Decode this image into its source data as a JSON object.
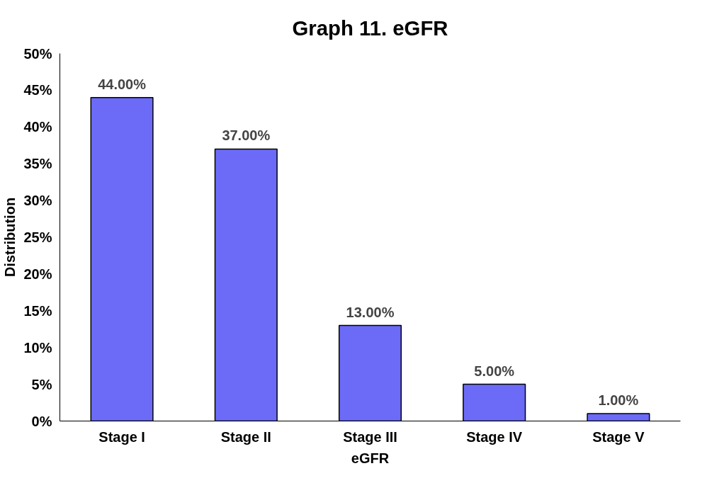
{
  "chart_data": {
    "type": "bar",
    "title": "Graph 11. eGFR",
    "xlabel": "eGFR",
    "ylabel": "Distribution",
    "categories": [
      "Stage I",
      "Stage II",
      "Stage III",
      "Stage IV",
      "Stage V"
    ],
    "values": [
      44,
      37,
      13,
      5,
      1
    ],
    "color": "#6b6bf7",
    "value_labels": [
      "44.00%",
      "37.00%",
      "13.00%",
      "5.00%",
      "1.00%"
    ],
    "ylim": [
      0,
      50
    ],
    "yticks": [
      {
        "value": 0,
        "label": "0%"
      },
      {
        "value": 5,
        "label": "5%"
      },
      {
        "value": 10,
        "label": "10%"
      },
      {
        "value": 15,
        "label": "15%"
      },
      {
        "value": 20,
        "label": "20%"
      },
      {
        "value": 25,
        "label": "25%"
      },
      {
        "value": 30,
        "label": "30%"
      },
      {
        "value": 35,
        "label": "35%"
      },
      {
        "value": 40,
        "label": "40%"
      },
      {
        "value": 45,
        "label": "45%"
      },
      {
        "value": 50,
        "label": "50%"
      }
    ],
    "grid": false
  }
}
